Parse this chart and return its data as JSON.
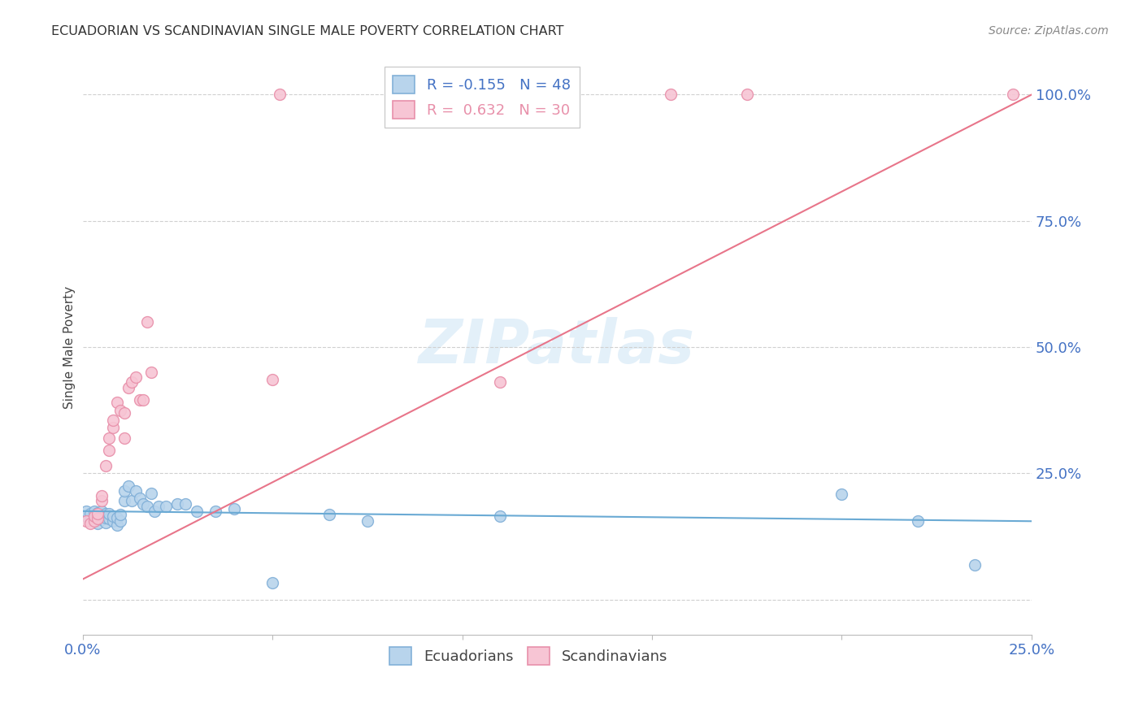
{
  "title": "ECUADORIAN VS SCANDINAVIAN SINGLE MALE POVERTY CORRELATION CHART",
  "source": "Source: ZipAtlas.com",
  "ylabel": "Single Male Poverty",
  "yticks": [
    0.0,
    0.25,
    0.5,
    0.75,
    1.0
  ],
  "ytick_labels": [
    "",
    "25.0%",
    "50.0%",
    "75.0%",
    "100.0%"
  ],
  "xticks": [
    0.0,
    0.05,
    0.1,
    0.15,
    0.2,
    0.25
  ],
  "xtick_labels": [
    "0.0%",
    "",
    "",
    "",
    "",
    "25.0%"
  ],
  "xlim": [
    0.0,
    0.25
  ],
  "ylim": [
    -0.07,
    1.07
  ],
  "ecu_color": "#b8d4ec",
  "ecu_edge_color": "#82b0d8",
  "scan_color": "#f7c5d4",
  "scan_edge_color": "#e890aa",
  "line_ecu_color": "#6aaad4",
  "line_scan_color": "#e8758a",
  "R_ecu": -0.155,
  "N_ecu": 48,
  "R_scan": 0.632,
  "N_scan": 30,
  "ecu_x": [
    0.001,
    0.001,
    0.002,
    0.002,
    0.003,
    0.003,
    0.003,
    0.004,
    0.004,
    0.004,
    0.005,
    0.005,
    0.005,
    0.006,
    0.006,
    0.006,
    0.007,
    0.007,
    0.008,
    0.008,
    0.009,
    0.009,
    0.01,
    0.01,
    0.011,
    0.011,
    0.012,
    0.013,
    0.014,
    0.015,
    0.016,
    0.017,
    0.018,
    0.019,
    0.02,
    0.022,
    0.025,
    0.027,
    0.03,
    0.035,
    0.04,
    0.05,
    0.065,
    0.075,
    0.11,
    0.2,
    0.22,
    0.235
  ],
  "ecu_y": [
    0.165,
    0.175,
    0.16,
    0.17,
    0.155,
    0.165,
    0.175,
    0.15,
    0.162,
    0.172,
    0.158,
    0.168,
    0.175,
    0.152,
    0.162,
    0.17,
    0.16,
    0.17,
    0.155,
    0.165,
    0.148,
    0.162,
    0.155,
    0.168,
    0.195,
    0.215,
    0.225,
    0.195,
    0.215,
    0.2,
    0.19,
    0.185,
    0.21,
    0.175,
    0.185,
    0.185,
    0.19,
    0.19,
    0.175,
    0.175,
    0.18,
    0.033,
    0.168,
    0.155,
    0.165,
    0.208,
    0.155,
    0.068
  ],
  "scan_x": [
    0.001,
    0.002,
    0.003,
    0.003,
    0.004,
    0.004,
    0.005,
    0.005,
    0.006,
    0.007,
    0.007,
    0.008,
    0.008,
    0.009,
    0.01,
    0.011,
    0.011,
    0.012,
    0.013,
    0.014,
    0.015,
    0.016,
    0.017,
    0.018,
    0.05,
    0.052,
    0.11,
    0.155,
    0.175,
    0.245
  ],
  "scan_y": [
    0.155,
    0.15,
    0.155,
    0.165,
    0.16,
    0.17,
    0.195,
    0.205,
    0.265,
    0.295,
    0.32,
    0.34,
    0.355,
    0.39,
    0.375,
    0.32,
    0.37,
    0.42,
    0.43,
    0.44,
    0.395,
    0.395,
    0.55,
    0.45,
    0.435,
    1.0,
    0.43,
    1.0,
    1.0,
    1.0
  ],
  "marker_size": 100,
  "marker_linewidth": 1.0,
  "background_color": "#ffffff",
  "grid_color": "#d0d0d0",
  "title_color": "#333333",
  "label_color": "#4472c4",
  "tick_label_color": "#4472c4",
  "scan_line_x0": 0.0,
  "scan_line_y0": 0.04,
  "scan_line_x1": 0.25,
  "scan_line_y1": 1.0,
  "ecu_line_x0": 0.0,
  "ecu_line_y0": 0.175,
  "ecu_line_x1": 0.25,
  "ecu_line_y1": 0.155
}
